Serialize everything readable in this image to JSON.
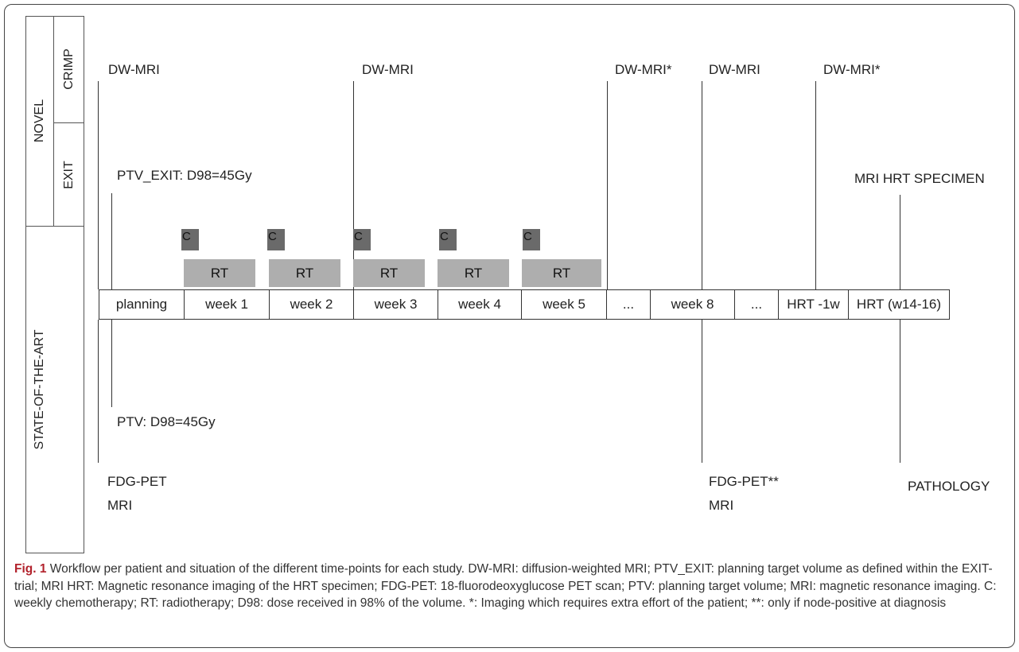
{
  "side_labels": {
    "novel": "NOVEL",
    "crimp": "CRIMP",
    "exit": "EXIT",
    "state": "STATE-OF-THE-ART"
  },
  "top_labels": {
    "dwmri_1": "DW-MRI",
    "dwmri_2": "DW-MRI",
    "dwmri_3": "DW-MRI*",
    "dwmri_4": "DW-MRI",
    "dwmri_5": "DW-MRI*",
    "ptv_exit": "PTV_EXIT: D98=45Gy",
    "mri_hrt": "MRI HRT SPECIMEN"
  },
  "bottom_labels": {
    "ptv": "PTV: D98=45Gy",
    "fdg_pet_1": "FDG-PET",
    "mri_1": "MRI",
    "fdg_pet_2": "FDG-PET**",
    "mri_2": "MRI",
    "pathology": "PATHOLOGY"
  },
  "chemo_label": "C",
  "radio_label": "RT",
  "timeline": [
    "planning",
    "week 1",
    "week 2",
    "week 3",
    "week 4",
    "week 5",
    "...",
    "week 8",
    "...",
    "HRT -1w",
    "HRT (w14-16)"
  ],
  "caption": {
    "fig": "Fig. 1",
    "text": "Workflow per patient and situation of the different time-points for each study. DW-MRI: diffusion-weighted MRI; PTV_EXIT: planning target volume as defined within the EXIT-trial; MRI HRT: Magnetic resonance imaging of the HRT specimen; FDG-PET: 18-fluorodeoxyglucose PET scan; PTV: planning target volume; MRI: magnetic resonance imaging. C: weekly chemotherapy; RT: radiotherapy; D98: dose received in 98% of the volume. *: Imaging which requires extra effort of the patient; **: only if node-positive at diagnosis"
  },
  "colors": {
    "chemo": "#6a6a6a",
    "radio": "#aeaeae",
    "figure_label": "#b2222c"
  }
}
